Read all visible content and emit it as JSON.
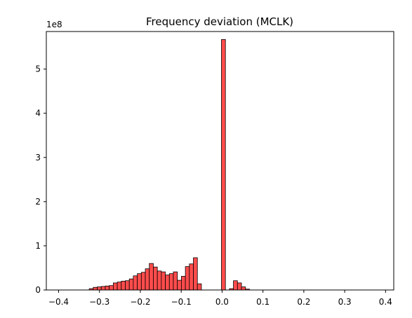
{
  "chart_data": {
    "type": "bar",
    "subtype": "histogram",
    "title": "Frequency deviation (MCLK)",
    "xlabel": "",
    "ylabel": "",
    "y_offset_label": "1e8",
    "xlim": [
      -0.43,
      0.42
    ],
    "ylim": [
      0,
      5.85
    ],
    "x_ticks": [
      -0.4,
      -0.3,
      -0.2,
      -0.1,
      0.0,
      0.1,
      0.2,
      0.3,
      0.4
    ],
    "x_tick_labels": [
      "−0.4",
      "−0.3",
      "−0.2",
      "−0.1",
      "0.0",
      "0.1",
      "0.2",
      "0.3",
      "0.4"
    ],
    "y_ticks": [
      0,
      1,
      2,
      3,
      4,
      5
    ],
    "y_tick_labels": [
      "0",
      "1",
      "2",
      "3",
      "4",
      "5"
    ],
    "grid": false,
    "legend": "none",
    "bar_color": "#ff4c4c",
    "edge_color": "#000000",
    "bin_width": 0.0098,
    "bins_left": [
      -0.325,
      -0.3152,
      -0.3054,
      -0.2956,
      -0.2858,
      -0.276,
      -0.2662,
      -0.2564,
      -0.2466,
      -0.2368,
      -0.227,
      -0.2172,
      -0.2074,
      -0.1976,
      -0.1878,
      -0.178,
      -0.1682,
      -0.1584,
      -0.1486,
      -0.1388,
      -0.129,
      -0.1192,
      -0.1094,
      -0.0996,
      -0.0898,
      -0.08,
      -0.0702,
      -0.0604,
      -0.0506,
      -0.0408,
      -0.031,
      -0.0212,
      -0.0114,
      -0.0016,
      0.0082,
      0.018,
      0.0278,
      0.0376,
      0.0474,
      0.0572
    ],
    "values": [
      0.03,
      0.06,
      0.07,
      0.08,
      0.09,
      0.1,
      0.16,
      0.18,
      0.2,
      0.21,
      0.25,
      0.32,
      0.37,
      0.4,
      0.48,
      0.6,
      0.52,
      0.43,
      0.41,
      0.34,
      0.37,
      0.41,
      0.22,
      0.31,
      0.53,
      0.59,
      0.73,
      0.14,
      0.0,
      0.0,
      0.0,
      0.0,
      0.0,
      5.67,
      0.0,
      0.03,
      0.21,
      0.16,
      0.07,
      0.02
    ]
  }
}
